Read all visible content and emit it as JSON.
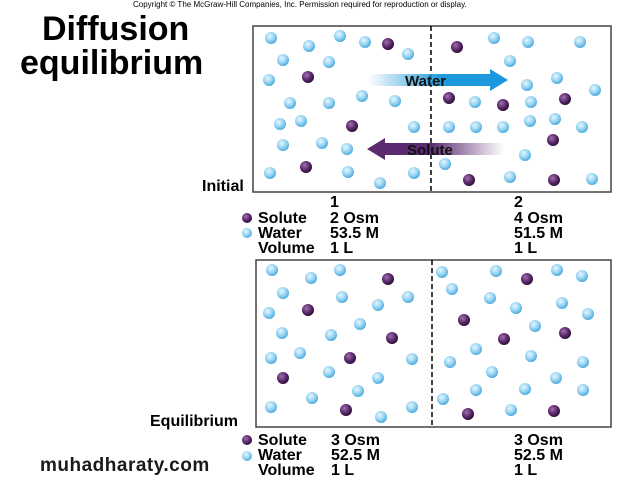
{
  "copyright": "Copyright © The McGraw-Hill Companies, Inc. Permission required for reproduction or display.",
  "title": {
    "line1": "Diffusion",
    "line2": "equilibrium"
  },
  "arrows": {
    "water": "Water",
    "solute": "Solute"
  },
  "colors": {
    "water": "#8fd0f0",
    "solute": "#5a2a6a",
    "water_arrow": "#1e98dc",
    "solute_arrow": "#5c2a70"
  },
  "initial": {
    "label": "Initial",
    "legend": {
      "solute": "Solute",
      "water": "Water",
      "volume": "Volume"
    },
    "compartments": [
      {
        "number": "1",
        "solute": "2 Osm",
        "water": "53.5 M",
        "volume": "1 L"
      },
      {
        "number": "2",
        "solute": "4 Osm",
        "water": "51.5 M",
        "volume": "1 L"
      }
    ]
  },
  "equilibrium": {
    "label": "Equilibrium",
    "legend": {
      "solute": "Solute",
      "water": "Water",
      "volume": "Volume"
    },
    "compartments": [
      {
        "solute": "3 Osm",
        "water": "52.5 M",
        "volume": "1 L"
      },
      {
        "solute": "3 Osm",
        "water": "52.5 M",
        "volume": "1 L"
      }
    ]
  },
  "watermark": "muhadharaty.com"
}
